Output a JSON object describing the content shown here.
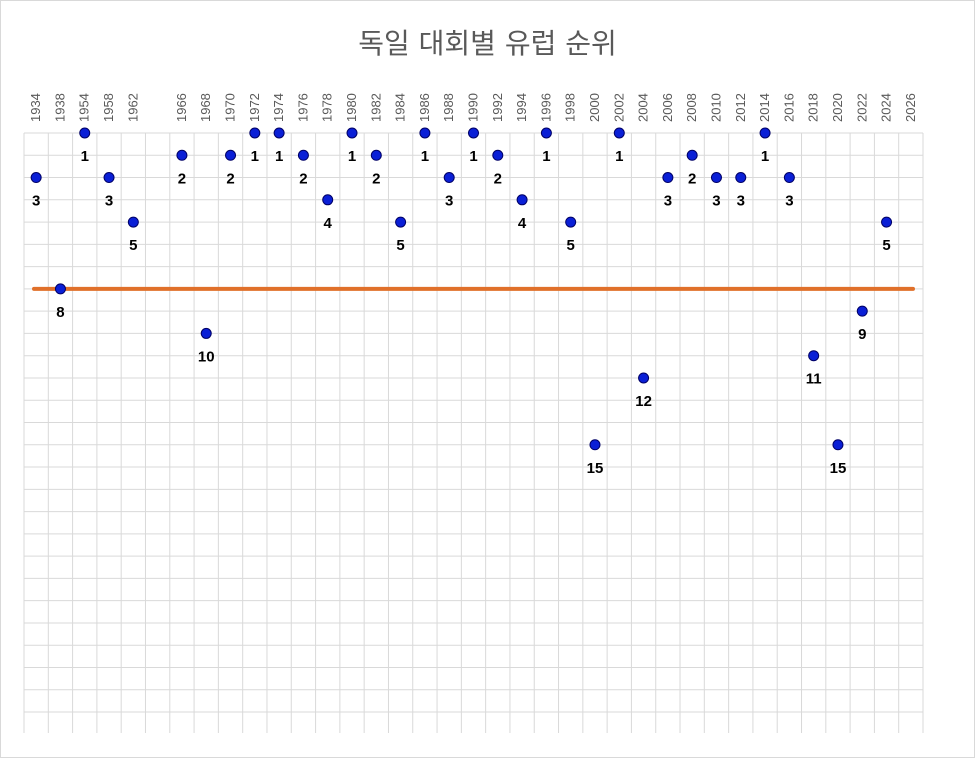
{
  "chart_data": {
    "type": "scatter",
    "title": "독일 대회별 유럽 순위",
    "x_ticks": [
      "1934",
      "1938",
      "1954",
      "1958",
      "1962",
      "",
      "1966",
      "1968",
      "1970",
      "1972",
      "1974",
      "1976",
      "1978",
      "1980",
      "1982",
      "1984",
      "1986",
      "1988",
      "1990",
      "1992",
      "1994",
      "1996",
      "1998",
      "2000",
      "2002",
      "2004",
      "2006",
      "2008",
      "2010",
      "2012",
      "2014",
      "2016",
      "2018",
      "2020",
      "2022",
      "2024",
      "2026"
    ],
    "points": [
      {
        "x": "1934",
        "y": 3
      },
      {
        "x": "1938",
        "y": 8
      },
      {
        "x": "1954",
        "y": 1
      },
      {
        "x": "1958",
        "y": 3
      },
      {
        "x": "1962",
        "y": 5
      },
      {
        "x": "1966",
        "y": 2
      },
      {
        "x": "1968",
        "y": 10
      },
      {
        "x": "1970",
        "y": 2
      },
      {
        "x": "1972",
        "y": 1
      },
      {
        "x": "1974",
        "y": 1
      },
      {
        "x": "1976",
        "y": 2
      },
      {
        "x": "1978",
        "y": 4
      },
      {
        "x": "1980",
        "y": 1
      },
      {
        "x": "1982",
        "y": 2
      },
      {
        "x": "1984",
        "y": 5
      },
      {
        "x": "1986",
        "y": 1
      },
      {
        "x": "1988",
        "y": 3
      },
      {
        "x": "1990",
        "y": 1
      },
      {
        "x": "1992",
        "y": 2
      },
      {
        "x": "1994",
        "y": 4
      },
      {
        "x": "1996",
        "y": 1
      },
      {
        "x": "1998",
        "y": 5
      },
      {
        "x": "2000",
        "y": 15
      },
      {
        "x": "2002",
        "y": 1
      },
      {
        "x": "2004",
        "y": 12
      },
      {
        "x": "2006",
        "y": 3
      },
      {
        "x": "2008",
        "y": 2
      },
      {
        "x": "2010",
        "y": 3
      },
      {
        "x": "2012",
        "y": 3
      },
      {
        "x": "2014",
        "y": 1
      },
      {
        "x": "2016",
        "y": 3
      },
      {
        "x": "2018",
        "y": 11
      },
      {
        "x": "2020",
        "y": 15
      },
      {
        "x": "2022",
        "y": 9
      },
      {
        "x": "2024",
        "y": 5
      }
    ],
    "reference_line": {
      "y": 8,
      "color": "#e0702a"
    },
    "y_axis": {
      "inverted": true,
      "min": 1,
      "max": 25
    },
    "grid": true,
    "marker_color": "#0a1fd6",
    "legend": "none"
  }
}
